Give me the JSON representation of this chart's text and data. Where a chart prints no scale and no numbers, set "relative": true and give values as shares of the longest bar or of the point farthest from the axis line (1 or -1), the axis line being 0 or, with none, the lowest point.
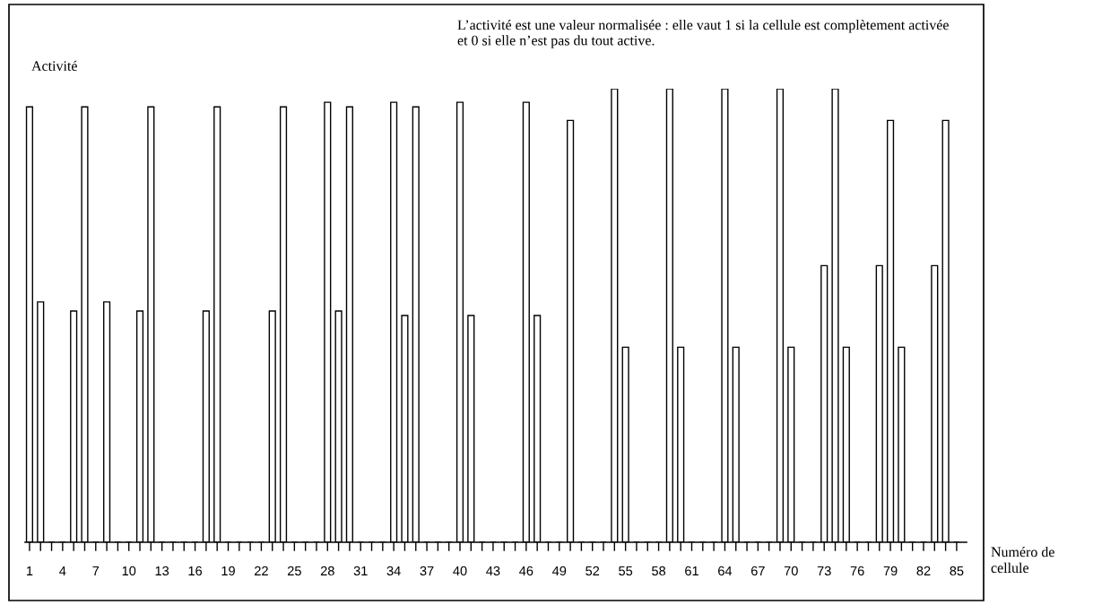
{
  "chart_data": {
    "type": "bar",
    "relative": true,
    "color": "#ffffff",
    "ylabel": "Activité",
    "xlabel": "Numéro de cellule",
    "annotations": [
      "L’activité est une valeur normalisée : elle vaut 1 si la cellule est complètement activée et 0 si elle n’est pas du tout active."
    ],
    "categories": [
      "1",
      null,
      null,
      "4",
      null,
      null,
      "7",
      null,
      null,
      "10",
      null,
      null,
      "13",
      null,
      null,
      "16",
      null,
      null,
      "19",
      null,
      null,
      "22",
      null,
      null,
      "25",
      null,
      null,
      "28",
      null,
      null,
      "31",
      null,
      null,
      "34",
      null,
      null,
      "37",
      null,
      null,
      "40",
      null,
      null,
      "43",
      null,
      null,
      "46",
      null,
      null,
      "49",
      null,
      null,
      "52",
      null,
      null,
      "55",
      null,
      null,
      "58",
      null,
      null,
      "61",
      null,
      null,
      "64",
      null,
      null,
      "67",
      null,
      null,
      "70",
      null,
      null,
      "73",
      null,
      null,
      "76",
      null,
      null,
      "79",
      null,
      null,
      "82",
      null,
      null,
      "85"
    ],
    "values": [
      0.96,
      0.53,
      0,
      0,
      0.51,
      0.96,
      0,
      0.53,
      0,
      0,
      0.51,
      0.96,
      0,
      0,
      0,
      0,
      0.51,
      0.96,
      0,
      0,
      0,
      0,
      0.51,
      0.96,
      0,
      0,
      0,
      0.97,
      0.51,
      0.96,
      0,
      0,
      0,
      0.97,
      0.5,
      0.96,
      0,
      0,
      0,
      0.97,
      0.5,
      0,
      0,
      0,
      0,
      0.97,
      0.5,
      0,
      0,
      0.93,
      0,
      0,
      0,
      1,
      0.43,
      0,
      0,
      0,
      1,
      0.43,
      0,
      0,
      0,
      1,
      0.43,
      0,
      0,
      0,
      1,
      0.43,
      0,
      0,
      0.61,
      1,
      0.43,
      0,
      0,
      0.61,
      0.93,
      0.43,
      0,
      0,
      0.61,
      0.93,
      0
    ]
  }
}
